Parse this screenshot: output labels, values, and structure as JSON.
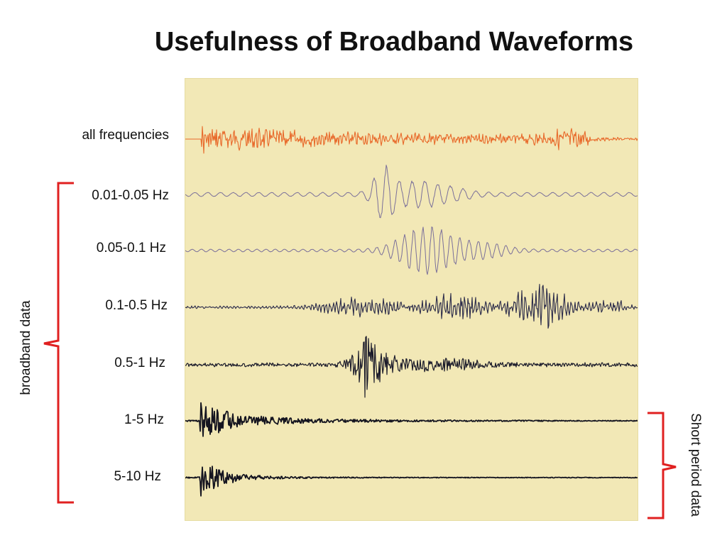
{
  "title": "Usefulness of Broadband Waveforms",
  "traces": [
    {
      "label": "all frequencies",
      "color": "#e8692a"
    },
    {
      "label": "0.01-0.05 Hz",
      "color": "#7a6f9a"
    },
    {
      "label": "0.05-0.1 Hz",
      "color": "#7a6f9a"
    },
    {
      "label": "0.1-0.5 Hz",
      "color": "#2b2b4a"
    },
    {
      "label": "0.5-1 Hz",
      "color": "#1a1a2a"
    },
    {
      "label": "1-5 Hz",
      "color": "#151520"
    },
    {
      "label": "5-10 Hz",
      "color": "#151520"
    }
  ],
  "groups": {
    "broadband": "broadband data",
    "short_period": "Short period data"
  },
  "colors": {
    "bracket": "#e02020",
    "panel_background": "#f2e8b6"
  }
}
